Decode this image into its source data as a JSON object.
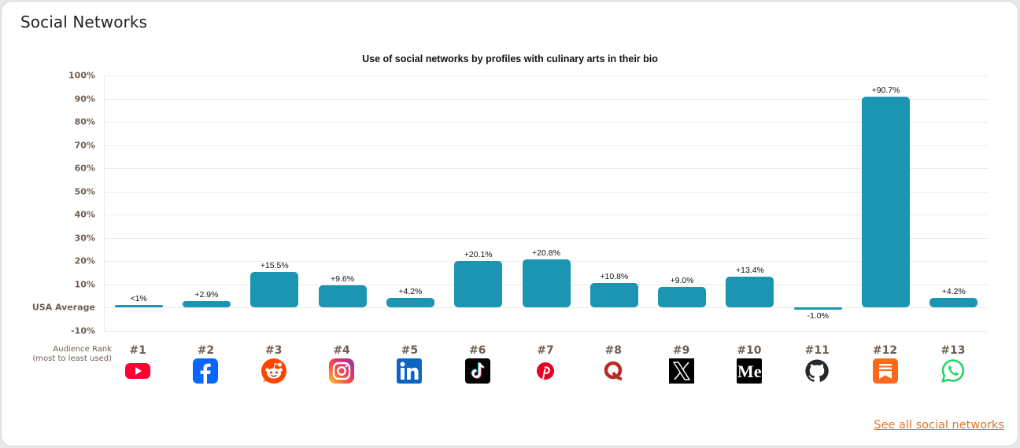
{
  "card": {
    "title": "Social Networks",
    "see_all_link": "See all social networks",
    "link_color": "#e0762a"
  },
  "chart_data": {
    "type": "bar",
    "title": "Use of social networks by profiles with culinary arts in their bio",
    "xlabel": "Audience Rank (most to least used)",
    "ylabel": "",
    "ylim": [
      -10,
      100
    ],
    "grid": true,
    "bar_color": "#1c95b2",
    "y_ticks": [
      "100%",
      "90%",
      "80%",
      "70%",
      "60%",
      "50%",
      "40%",
      "30%",
      "20%",
      "10%",
      "USA Average",
      "-10%"
    ],
    "y_tick_values": [
      100,
      90,
      80,
      70,
      60,
      50,
      40,
      30,
      20,
      10,
      0,
      -10
    ],
    "categories": [
      "YouTube",
      "Facebook",
      "Reddit",
      "Instagram",
      "LinkedIn",
      "TikTok",
      "Pinterest",
      "Quora",
      "X",
      "Medium",
      "GitHub",
      "Substack",
      "WhatsApp"
    ],
    "ranks": [
      "#1",
      "#2",
      "#3",
      "#4",
      "#5",
      "#6",
      "#7",
      "#8",
      "#9",
      "#10",
      "#11",
      "#12",
      "#13"
    ],
    "values": [
      0.5,
      2.9,
      15.5,
      9.6,
      4.2,
      20.1,
      20.8,
      10.8,
      9.0,
      13.4,
      -1.0,
      90.7,
      4.2
    ],
    "labels": [
      "<1%",
      "+2.9%",
      "+15.5%",
      "+9.6%",
      "+4.2%",
      "+20.1%",
      "+20.8%",
      "+10.8%",
      "+9.0%",
      "+13.4%",
      "-1.0%",
      "+90.7%",
      "+4.2%"
    ],
    "icons": [
      "youtube-icon",
      "facebook-icon",
      "reddit-icon",
      "instagram-icon",
      "linkedin-icon",
      "tiktok-icon",
      "pinterest-icon",
      "quora-icon",
      "x-icon",
      "medium-icon",
      "github-icon",
      "substack-icon",
      "whatsapp-icon"
    ]
  },
  "rank_caption": {
    "line1": "Audience Rank",
    "line2": "(most to least used)"
  }
}
